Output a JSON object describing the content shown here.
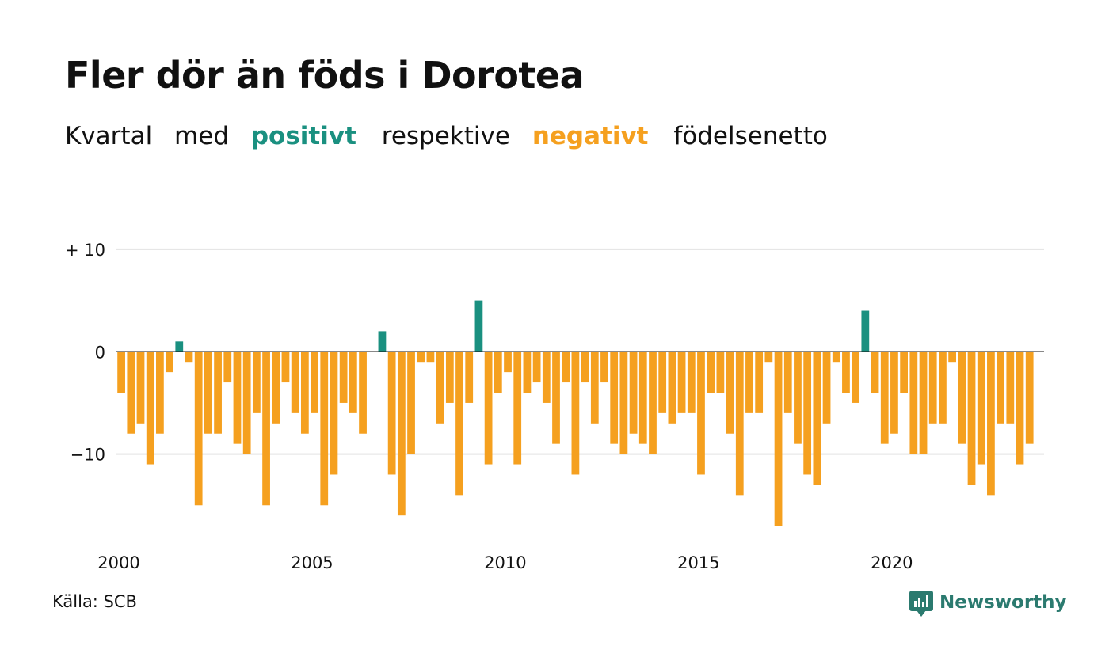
{
  "title": "Fler dör än föds i Dorotea",
  "subtitle": {
    "part1": "Kvartal",
    "part2": "med",
    "positive": "positivt",
    "part3": "respektive",
    "negative": "negativt",
    "part4": "födelsenetto"
  },
  "source": "Källa: SCB",
  "brand": {
    "name": "Newsworthy",
    "icon": "newsworthy-logo-icon"
  },
  "colors": {
    "positive": "#1a9080",
    "negative": "#f5a01f",
    "grid": "#e3e3e3",
    "axis": "#111111",
    "brand": "#2b7a6f"
  },
  "chart_data": {
    "type": "bar",
    "x_start": 2000,
    "x_step": 0.25,
    "xlim": [
      2000,
      2024
    ],
    "ylim": [
      -19,
      11
    ],
    "y_ticks": [
      {
        "value": 10,
        "label": "+ 10"
      },
      {
        "value": 0,
        "label": "0"
      },
      {
        "value": -10,
        "label": "−10"
      }
    ],
    "x_ticks": [
      {
        "value": 2000,
        "label": "2000"
      },
      {
        "value": 2005,
        "label": "2005"
      },
      {
        "value": 2010,
        "label": "2010"
      },
      {
        "value": 2015,
        "label": "2015"
      },
      {
        "value": 2020,
        "label": "2020"
      }
    ],
    "grid": true,
    "values": [
      -4,
      -8,
      -7,
      -11,
      -8,
      -2,
      1,
      -1,
      -15,
      -8,
      -8,
      -3,
      -9,
      -10,
      -6,
      -15,
      -7,
      -3,
      -6,
      -8,
      -6,
      -15,
      -12,
      -5,
      -6,
      -8,
      0,
      2,
      -12,
      -16,
      -10,
      -1,
      -1,
      -7,
      -5,
      -14,
      -5,
      5,
      -11,
      -4,
      -2,
      -11,
      -4,
      -3,
      -5,
      -9,
      -3,
      -12,
      -3,
      -7,
      -3,
      -9,
      -10,
      -8,
      -9,
      -10,
      -6,
      -7,
      -6,
      -6,
      -12,
      -4,
      -4,
      -8,
      -14,
      -6,
      -6,
      -1,
      -17,
      -6,
      -9,
      -12,
      -13,
      -7,
      -1,
      -4,
      -5,
      4,
      -4,
      -9,
      -8,
      -4,
      -10,
      -10,
      -7,
      -7,
      -1,
      -9,
      -13,
      -11,
      -14,
      -7,
      -7,
      -11,
      -9
    ]
  }
}
